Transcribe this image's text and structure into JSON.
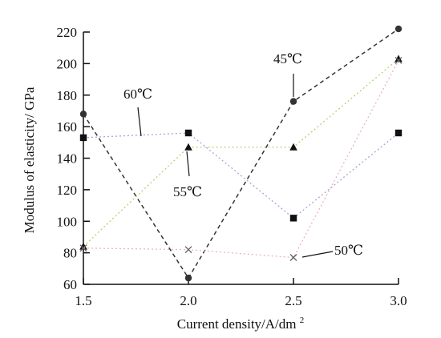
{
  "chart_data": {
    "type": "line",
    "x": [
      1.5,
      2.0,
      2.5,
      3.0
    ],
    "x_tick_labels": [
      "1.5",
      "2.0",
      "2.5",
      "3.0"
    ],
    "xlim": [
      1.5,
      3.0
    ],
    "ylim": [
      60,
      220
    ],
    "y_ticks": [
      60,
      80,
      100,
      120,
      140,
      160,
      180,
      200,
      220
    ],
    "xlabel": "Current density/A/dm",
    "xlabel_superscript": "2",
    "ylabel": "Modulus of elasticity/ GPa",
    "grid": false,
    "series": [
      {
        "name": "45℃",
        "values": [
          168,
          64,
          176,
          222
        ],
        "marker": "circle",
        "color": "#333333",
        "line_style": "dashed"
      },
      {
        "name": "55℃",
        "values": [
          84,
          147,
          147,
          203
        ],
        "marker": "triangle",
        "color": "#b9cf76",
        "line_style": "dotted"
      },
      {
        "name": "60℃",
        "values": [
          153,
          156,
          102,
          156
        ],
        "marker": "square",
        "color": "#a2a6d8",
        "line_style": "dotted"
      },
      {
        "name": "50℃",
        "values": [
          83,
          82,
          77,
          202
        ],
        "marker": "cross",
        "color": "#e8b3bf",
        "line_style": "dotted"
      }
    ],
    "annotations": [
      {
        "text": "60℃",
        "series": "60℃"
      },
      {
        "text": "45℃",
        "series": "45℃"
      },
      {
        "text": "55℃",
        "series": "55℃"
      },
      {
        "text": "50℃",
        "series": "50℃"
      }
    ]
  }
}
